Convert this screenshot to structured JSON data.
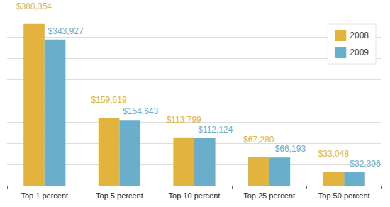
{
  "chart_data": {
    "type": "bar",
    "categories": [
      "Top 1 percent",
      "Top 5 percent",
      "Top 10 percent",
      "Top 25 percent",
      "Top 50 percent"
    ],
    "series": [
      {
        "name": "2008",
        "color": "#e2b43e",
        "values": [
          380354,
          159619,
          113799,
          67280,
          33048
        ],
        "value_labels": [
          "$380,354",
          "$159,619",
          "$113,799",
          "$67,280",
          "$33,048"
        ]
      },
      {
        "name": "2009",
        "color": "#6aaecb",
        "values": [
          343927,
          154643,
          112124,
          66193,
          32396
        ],
        "value_labels": [
          "$343,927",
          "$154,643",
          "$112,124",
          "$66,193",
          "$32,396"
        ]
      }
    ],
    "ylim": [
      0,
      400000
    ],
    "yticks": [
      0,
      50000,
      100000,
      150000,
      200000,
      250000,
      300000,
      350000,
      400000
    ],
    "grid": true,
    "legend": "top-right",
    "data_labels": true,
    "tick_labels": "x"
  }
}
